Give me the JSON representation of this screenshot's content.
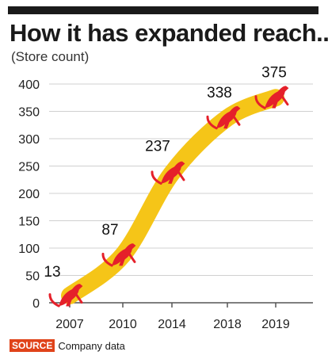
{
  "header": {
    "title": "How it has expanded reach...",
    "subtitle": "(Store count)"
  },
  "footer": {
    "source_label": "SOURCE",
    "source_text": "Company data"
  },
  "colors": {
    "band": "#f5c518",
    "puma": "#e5202a",
    "axis": "#555555",
    "grid": "#d0d0d0",
    "source_badge": "#e0431a"
  },
  "chart_data": {
    "type": "line",
    "title": "How it has expanded reach...",
    "subtitle": "(Store count)",
    "categories": [
      "2007",
      "2010",
      "2014",
      "2018",
      "2019"
    ],
    "values": [
      13,
      87,
      237,
      338,
      375
    ],
    "data_labels": [
      "13",
      "87",
      "237",
      "338",
      "375"
    ],
    "ylim": [
      0,
      400
    ],
    "yticks": [
      0,
      50,
      100,
      150,
      200,
      250,
      300,
      350,
      400
    ],
    "grid": true,
    "marker": "puma-icon"
  }
}
